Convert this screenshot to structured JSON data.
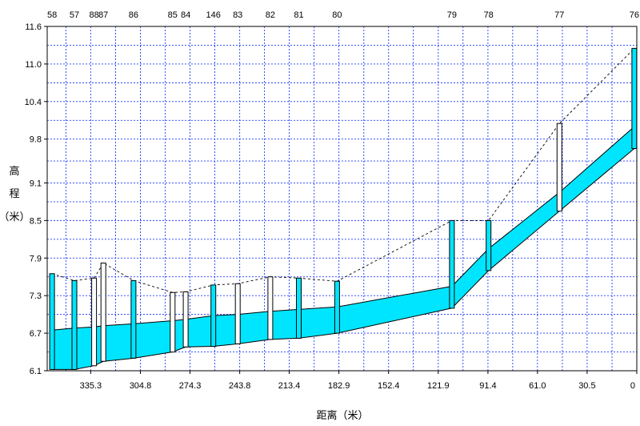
{
  "chart_data": {
    "type": "line",
    "title": "",
    "xlabel": "距离（米）",
    "ylabel_chars": [
      "高",
      "程",
      "（米）"
    ],
    "x_axis_reversed": true,
    "xlim": [
      0,
      362
    ],
    "ylim": [
      6.1,
      11.6
    ],
    "y_ticks": [
      "6.1",
      "6.7",
      "7.3",
      "7.9",
      "8.5",
      "9.1",
      "9.8",
      "10.4",
      "11.0",
      "11.6"
    ],
    "x_tick_labels": [
      "335.3",
      "304.8",
      "274.3",
      "243.8",
      "213.4",
      "182.9",
      "152.4",
      "121.9",
      "91.4",
      "61.0",
      "30.5",
      "0"
    ],
    "x_tick_values": [
      335.3,
      304.8,
      274.3,
      243.8,
      213.4,
      182.9,
      152.4,
      121.9,
      91.4,
      61.0,
      30.5,
      0
    ],
    "y_grid_values": [
      6.1,
      6.4,
      6.7,
      7.0,
      7.3,
      7.6,
      7.9,
      8.2,
      8.5,
      8.8,
      9.1,
      9.45,
      9.8,
      10.1,
      10.4,
      10.7,
      11.0,
      11.3,
      11.6
    ],
    "x_grid_values": [
      350.5,
      335.3,
      320.0,
      304.8,
      289.6,
      274.3,
      259.1,
      243.8,
      228.6,
      213.4,
      198.1,
      182.9,
      167.6,
      152.4,
      137.2,
      121.9,
      106.7,
      91.4,
      76.2,
      61.0,
      45.7,
      30.5,
      15.2,
      0
    ],
    "nodes": [
      {
        "id": "58",
        "x": 359.0,
        "ground": 7.65,
        "invert": 6.12,
        "water": 6.75,
        "fill": "cyan"
      },
      {
        "id": "57",
        "x": 345.3,
        "ground": 7.54,
        "invert": 6.12,
        "water": 6.78,
        "fill": "cyan"
      },
      {
        "id": "88",
        "x": 333.2,
        "ground": 7.58,
        "invert": 6.18,
        "water": 6.8,
        "fill": "white"
      },
      {
        "id": "87",
        "x": 327.5,
        "ground": 7.82,
        "invert": 6.25,
        "water": 6.82,
        "fill": "white"
      },
      {
        "id": "86",
        "x": 309.0,
        "ground": 7.54,
        "invert": 6.3,
        "water": 6.85,
        "fill": "cyan"
      },
      {
        "id": "85",
        "x": 285.0,
        "ground": 7.35,
        "invert": 6.4,
        "water": 6.9,
        "fill": "white"
      },
      {
        "id": "84",
        "x": 277.0,
        "ground": 7.36,
        "invert": 6.48,
        "water": 6.92,
        "fill": "white"
      },
      {
        "id": "146",
        "x": 260.0,
        "ground": 7.47,
        "invert": 6.49,
        "water": 6.98,
        "fill": "cyan"
      },
      {
        "id": "83",
        "x": 245.0,
        "ground": 7.49,
        "invert": 6.53,
        "water": 7.0,
        "fill": "white"
      },
      {
        "id": "82",
        "x": 225.0,
        "ground": 7.6,
        "invert": 6.6,
        "water": 7.05,
        "fill": "white"
      },
      {
        "id": "81",
        "x": 207.5,
        "ground": 7.58,
        "invert": 6.62,
        "water": 7.08,
        "fill": "cyan"
      },
      {
        "id": "80",
        "x": 184.0,
        "ground": 7.53,
        "invert": 6.7,
        "water": 7.12,
        "fill": "cyan"
      },
      {
        "id": "79",
        "x": 113.5,
        "ground": 8.5,
        "invert": 7.1,
        "water": 7.45,
        "fill": "cyan"
      },
      {
        "id": "78",
        "x": 91.0,
        "ground": 8.5,
        "invert": 7.7,
        "water": 8.05,
        "fill": "cyan"
      },
      {
        "id": "77",
        "x": 47.5,
        "ground": 10.05,
        "invert": 8.65,
        "water": 8.95,
        "fill": "white"
      },
      {
        "id": "76",
        "x": 1.5,
        "ground": 11.25,
        "invert": 9.65,
        "water": 10.0,
        "fill": "cyan"
      }
    ],
    "end_ground": 11.25,
    "end_invert": 10.0,
    "end_water": 10.3
  }
}
